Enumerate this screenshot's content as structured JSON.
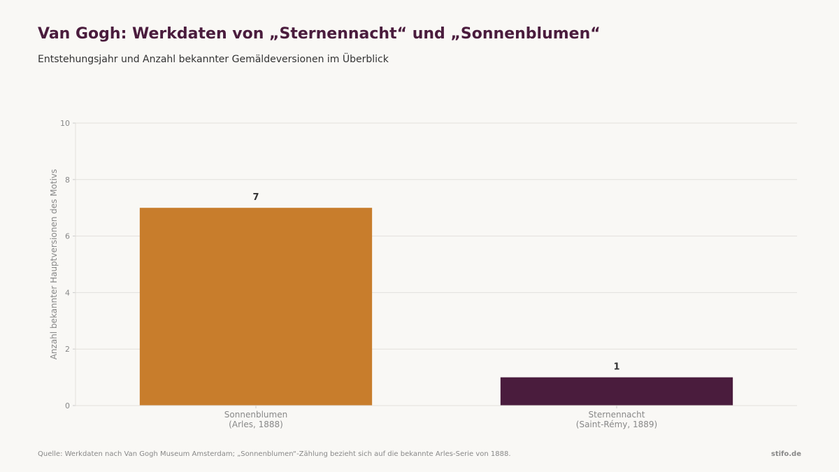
{
  "header": {
    "title": "Van Gogh: Werkdaten von „Sternennacht“ und „Sonnenblumen“",
    "subtitle": "Entstehungsjahr und Anzahl bekannter Gemäldeversionen im Überblick"
  },
  "footer": {
    "source": "Quelle: Werkdaten nach Van Gogh Museum Amsterdam; „Sonnenblumen“-Zählung bezieht sich auf die bekannte Arles-Serie von 1888.",
    "brand": "stifo.de"
  },
  "chart_data": {
    "type": "bar",
    "categories": [
      [
        "Sonnenblumen",
        "(Arles, 1888)"
      ],
      [
        "Sternennacht",
        "(Saint-Rémy, 1889)"
      ]
    ],
    "values": [
      7,
      1
    ],
    "data_labels": [
      "7",
      "1"
    ],
    "colors": [
      "#c87d2c",
      "#4a1c3d"
    ],
    "ylabel": "Anzahl bekannter Hauptversionen des Motivs",
    "ylim": [
      0,
      10
    ],
    "yticks": [
      0,
      2,
      4,
      6,
      8,
      10
    ],
    "grid": true
  }
}
